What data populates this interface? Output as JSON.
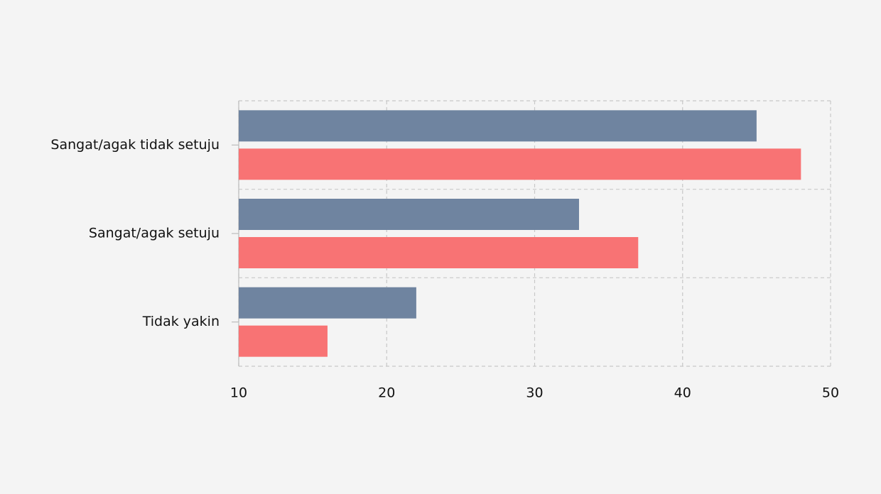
{
  "chart_data": {
    "type": "bar",
    "orientation": "horizontal",
    "categories": [
      "Sangat/agak tidak setuju",
      "Sangat/agak setuju",
      "Tidak yakin"
    ],
    "series": [
      {
        "color": "#6f84a0",
        "values": [
          45,
          33,
          22
        ]
      },
      {
        "color": "#f87374",
        "values": [
          48,
          37,
          16
        ]
      }
    ],
    "xlim": [
      10,
      50
    ],
    "xticks": [
      10,
      20,
      30,
      40,
      50
    ],
    "grid": true
  }
}
